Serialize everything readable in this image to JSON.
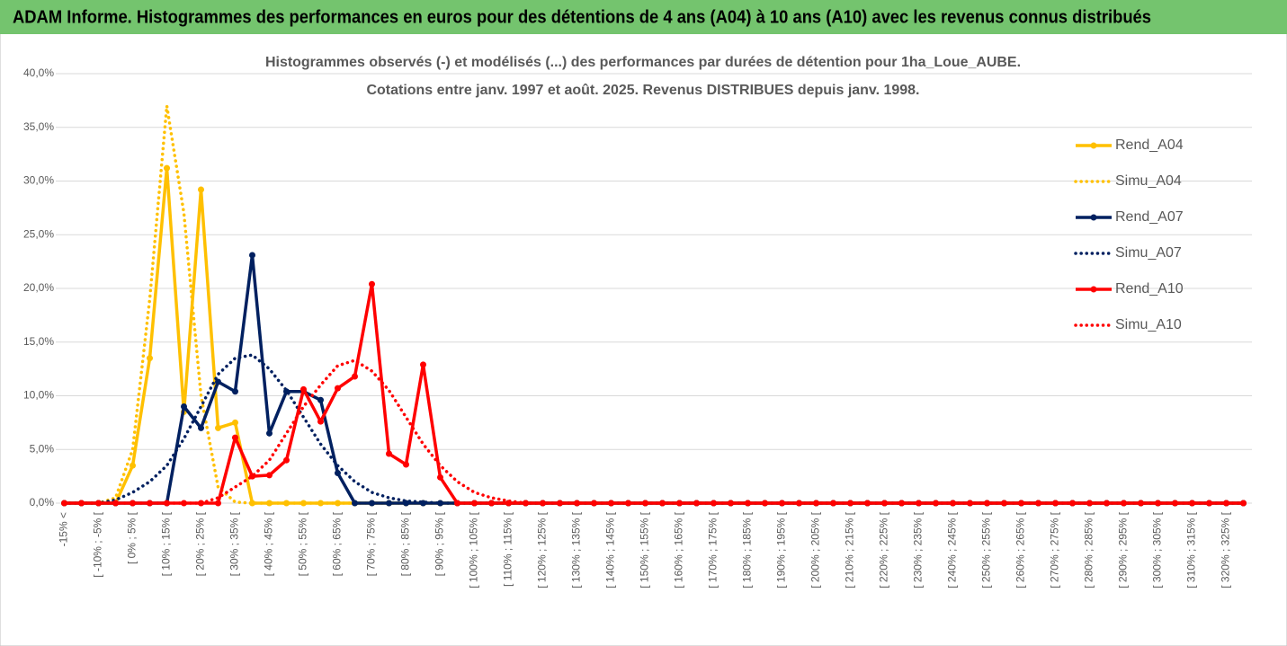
{
  "header": {
    "title": "ADAM Informe. Histogrammes des performances en euros pour des détentions de 4 ans (A04) à 10 ans (A10) avec les revenus connus distribués"
  },
  "chart_data": {
    "type": "line",
    "title": "Histogrammes observés (-) et modélisés (...) des performances par durées de détention pour 1ha_Loue_AUBE.",
    "subtitle": "Cotations entre janv. 1997 et août. 2025. Revenus DISTRIBUES depuis janv. 1998.",
    "categories": [
      "-15% <",
      null,
      "[ -10% ; -5% [",
      null,
      "[ 0% ; 5% [",
      null,
      "[ 10% ; 15% [",
      null,
      "[ 20% ; 25% [",
      null,
      "[ 30% ; 35% [",
      null,
      "[ 40% ; 45% [",
      null,
      "[ 50% ; 55% [",
      null,
      "[ 60% ; 65% [",
      null,
      "[ 70% ; 75% [",
      null,
      "[ 80% ; 85% [",
      null,
      "[ 90% ; 95% [",
      null,
      "[ 100% ; 105% [",
      null,
      "[ 110% ; 115% [",
      null,
      "[ 120% ; 125% [",
      null,
      "[ 130% ; 135% [",
      null,
      "[ 140% ; 145% [",
      null,
      "[ 150% ; 155% [",
      null,
      "[ 160% ; 165% [",
      null,
      "[ 170% ; 175% [",
      null,
      "[ 180% ; 185% [",
      null,
      "[ 190% ; 195% [",
      null,
      "[ 200% ; 205% [",
      null,
      "[ 210% ; 215% [",
      null,
      "[ 220% ; 225% [",
      null,
      "[ 230% ; 235% [",
      null,
      "[ 240% ; 245% [",
      null,
      "[ 250% ; 255% [",
      null,
      "[ 260% ; 265% [",
      null,
      "[ 270% ; 275% [",
      null,
      "[ 280% ; 285% [",
      null,
      "[ 290% ; 295% [",
      null,
      "[ 300% ; 305% [",
      null,
      "[ 310% ; 315% [",
      null,
      "[ 320% ; 325% [",
      null
    ],
    "series": [
      {
        "name": "Rend_A04",
        "color": "#ffc000",
        "style": "solid",
        "markers": true,
        "values": [
          0,
          0,
          0,
          0,
          3.5,
          13.5,
          31.2,
          8.5,
          29.2,
          7.0,
          7.5,
          0,
          0,
          0,
          0,
          0,
          0,
          0,
          0,
          0,
          0,
          0,
          0,
          0,
          0,
          0,
          0,
          0,
          0,
          0,
          0,
          0,
          0,
          0,
          0,
          0,
          0,
          0,
          0,
          0,
          0,
          0,
          0,
          0,
          0,
          0,
          0,
          0,
          0,
          0,
          0,
          0,
          0,
          0,
          0,
          0,
          0,
          0,
          0,
          0,
          0,
          0,
          0,
          0,
          0,
          0,
          0,
          0,
          0,
          0
        ]
      },
      {
        "name": "Simu_A04",
        "color": "#ffc000",
        "style": "dotted",
        "markers": false,
        "values": [
          0,
          0,
          0,
          0.5,
          5,
          19,
          37,
          27,
          10,
          1.5,
          0.1,
          0,
          0,
          0,
          0,
          0,
          0,
          0,
          0,
          0,
          0,
          0,
          0,
          0,
          0,
          0,
          0,
          0,
          0,
          0,
          0,
          0,
          0,
          0,
          0,
          0,
          0,
          0,
          0,
          0,
          0,
          0,
          0,
          0,
          0,
          0,
          0,
          0,
          0,
          0,
          0,
          0,
          0,
          0,
          0,
          0,
          0,
          0,
          0,
          0,
          0,
          0,
          0,
          0,
          0,
          0,
          0,
          0,
          0,
          0
        ]
      },
      {
        "name": "Rend_A07",
        "color": "#002060",
        "style": "solid",
        "markers": true,
        "values": [
          0,
          0,
          0,
          0,
          0,
          0,
          0,
          9,
          7,
          11.3,
          10.4,
          23.1,
          6.5,
          10.4,
          10.4,
          9.6,
          2.8,
          0,
          0,
          0,
          0,
          0,
          0,
          0,
          0,
          0,
          0,
          0,
          0,
          0,
          0,
          0,
          0,
          0,
          0,
          0,
          0,
          0,
          0,
          0,
          0,
          0,
          0,
          0,
          0,
          0,
          0,
          0,
          0,
          0,
          0,
          0,
          0,
          0,
          0,
          0,
          0,
          0,
          0,
          0,
          0,
          0,
          0,
          0,
          0,
          0,
          0,
          0,
          0,
          0
        ]
      },
      {
        "name": "Simu_A07",
        "color": "#002060",
        "style": "dotted",
        "markers": false,
        "values": [
          0,
          0,
          0,
          0.3,
          1,
          2,
          3.5,
          6,
          9,
          12,
          13.5,
          13.8,
          12.5,
          10.5,
          8,
          5.5,
          3.5,
          2,
          1,
          0.5,
          0.2,
          0.1,
          0,
          0,
          0,
          0,
          0,
          0,
          0,
          0,
          0,
          0,
          0,
          0,
          0,
          0,
          0,
          0,
          0,
          0,
          0,
          0,
          0,
          0,
          0,
          0,
          0,
          0,
          0,
          0,
          0,
          0,
          0,
          0,
          0,
          0,
          0,
          0,
          0,
          0,
          0,
          0,
          0,
          0,
          0,
          0,
          0,
          0,
          0,
          0
        ]
      },
      {
        "name": "Rend_A10",
        "color": "#ff0000",
        "style": "solid",
        "markers": true,
        "values": [
          0,
          0,
          0,
          0,
          0,
          0,
          0,
          0,
          0,
          0,
          6.1,
          2.5,
          2.6,
          4.0,
          10.6,
          7.6,
          10.7,
          11.8,
          20.4,
          4.6,
          3.6,
          12.9,
          2.4,
          0,
          0,
          0,
          0,
          0,
          0,
          0,
          0,
          0,
          0,
          0,
          0,
          0,
          0,
          0,
          0,
          0,
          0,
          0,
          0,
          0,
          0,
          0,
          0,
          0,
          0,
          0,
          0,
          0,
          0,
          0,
          0,
          0,
          0,
          0,
          0,
          0,
          0,
          0,
          0,
          0,
          0,
          0,
          0,
          0,
          0,
          0
        ]
      },
      {
        "name": "Simu_A10",
        "color": "#ff0000",
        "style": "dotted",
        "markers": false,
        "values": [
          0,
          0,
          0,
          0,
          0,
          0,
          0,
          0,
          0,
          0.5,
          1.5,
          2.5,
          4,
          6.5,
          9,
          11,
          12.8,
          13.3,
          12.3,
          10.5,
          8,
          5.5,
          3.5,
          2,
          1,
          0.5,
          0.2,
          0,
          0,
          0,
          0,
          0,
          0,
          0,
          0,
          0,
          0,
          0,
          0,
          0,
          0,
          0,
          0,
          0,
          0,
          0,
          0,
          0,
          0,
          0,
          0,
          0,
          0,
          0,
          0,
          0,
          0,
          0,
          0,
          0,
          0,
          0,
          0,
          0,
          0,
          0,
          0,
          0,
          0,
          0
        ]
      }
    ],
    "ylim": [
      0,
      40
    ],
    "yticks": [
      {
        "value": 0,
        "label": "0,0%"
      },
      {
        "value": 5,
        "label": "5,0%"
      },
      {
        "value": 10,
        "label": "10,0%"
      },
      {
        "value": 15,
        "label": "15,0%"
      },
      {
        "value": 20,
        "label": "20,0%"
      },
      {
        "value": 25,
        "label": "25,0%"
      },
      {
        "value": 30,
        "label": "30,0%"
      },
      {
        "value": 35,
        "label": "35,0%"
      },
      {
        "value": 40,
        "label": "40,0%"
      }
    ],
    "grid": true,
    "legend": "right"
  }
}
